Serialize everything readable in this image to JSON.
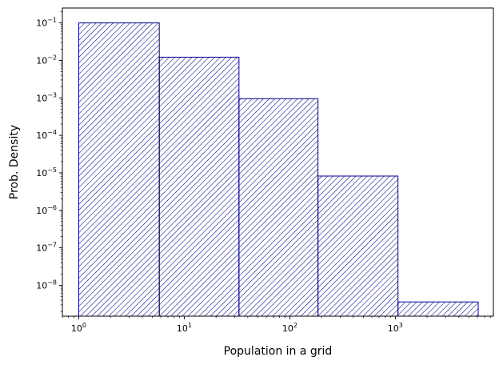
{
  "chart_data": {
    "type": "bar",
    "title": "",
    "xlabel": "Population in a grid",
    "ylabel": "Prob. Density",
    "xscale": "log",
    "yscale": "log",
    "xlim": [
      0.7,
      8500
    ],
    "ylim": [
      1.5e-09,
      0.25
    ],
    "grid": false,
    "legend": "none",
    "bins": [
      {
        "x_start": 1,
        "x_end": 5.8,
        "density": 0.1
      },
      {
        "x_start": 5.8,
        "x_end": 33,
        "density": 0.0122
      },
      {
        "x_start": 33,
        "x_end": 185,
        "density": 0.00095
      },
      {
        "x_start": 185,
        "x_end": 1060,
        "density": 8.2e-06
      },
      {
        "x_start": 1060,
        "x_end": 6100,
        "density": 3.6e-09
      }
    ],
    "x_major_ticks": [
      {
        "value": 1,
        "base": "10",
        "exp": "0"
      },
      {
        "value": 10,
        "base": "10",
        "exp": "1"
      },
      {
        "value": 100,
        "base": "10",
        "exp": "2"
      },
      {
        "value": 1000,
        "base": "10",
        "exp": "3"
      }
    ],
    "y_major_ticks": [
      {
        "value": 1e-08,
        "base": "10",
        "exp": "−8"
      },
      {
        "value": 1e-07,
        "base": "10",
        "exp": "−7"
      },
      {
        "value": 1e-06,
        "base": "10",
        "exp": "−6"
      },
      {
        "value": 1e-05,
        "base": "10",
        "exp": "−5"
      },
      {
        "value": 0.0001,
        "base": "10",
        "exp": "−4"
      },
      {
        "value": 0.001,
        "base": "10",
        "exp": "−3"
      },
      {
        "value": 0.01,
        "base": "10",
        "exp": "−2"
      },
      {
        "value": 0.1,
        "base": "10",
        "exp": "−1"
      }
    ],
    "colors": {
      "bar_edge": "#00008b",
      "hatch": "#00008b",
      "bar_fill": "#ffffff",
      "axes": "#000000"
    }
  }
}
